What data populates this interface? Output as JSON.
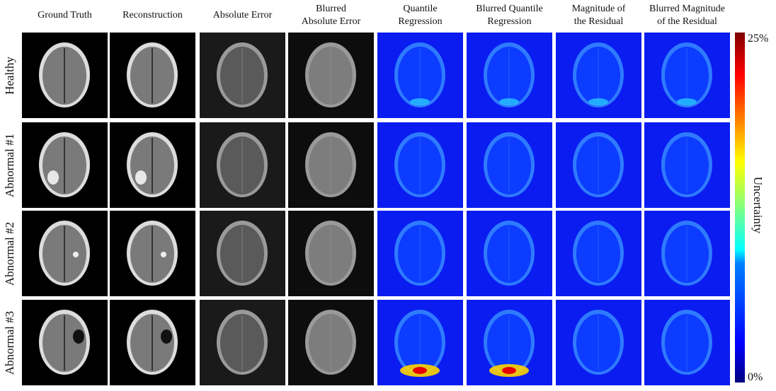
{
  "columns": [
    {
      "lines": [
        "Ground Truth"
      ]
    },
    {
      "lines": [
        "Reconstruction"
      ]
    },
    {
      "lines": [
        "Absolute Error"
      ]
    },
    {
      "lines": [
        "Blurred",
        "Absolute Error"
      ]
    },
    {
      "lines": [
        "Quantile",
        "Regression"
      ]
    },
    {
      "lines": [
        "Blurred Quantile",
        "Regression"
      ]
    },
    {
      "lines": [
        "Magnitude of",
        "the Residual"
      ]
    },
    {
      "lines": [
        "Blurred Magnitude",
        "of the Residual"
      ]
    }
  ],
  "rows": [
    {
      "label": "Healthy"
    },
    {
      "label": "Abnormal #1"
    },
    {
      "label": "Abnormal #2"
    },
    {
      "label": "Abnormal #3"
    }
  ],
  "colorbar": {
    "max_label": "25%",
    "min_label": "0%",
    "label": "Uncertainty",
    "colors": [
      "#00007f",
      "#0000ff",
      "#00ffff",
      "#ffff00",
      "#ff0000",
      "#7f0000"
    ]
  }
}
